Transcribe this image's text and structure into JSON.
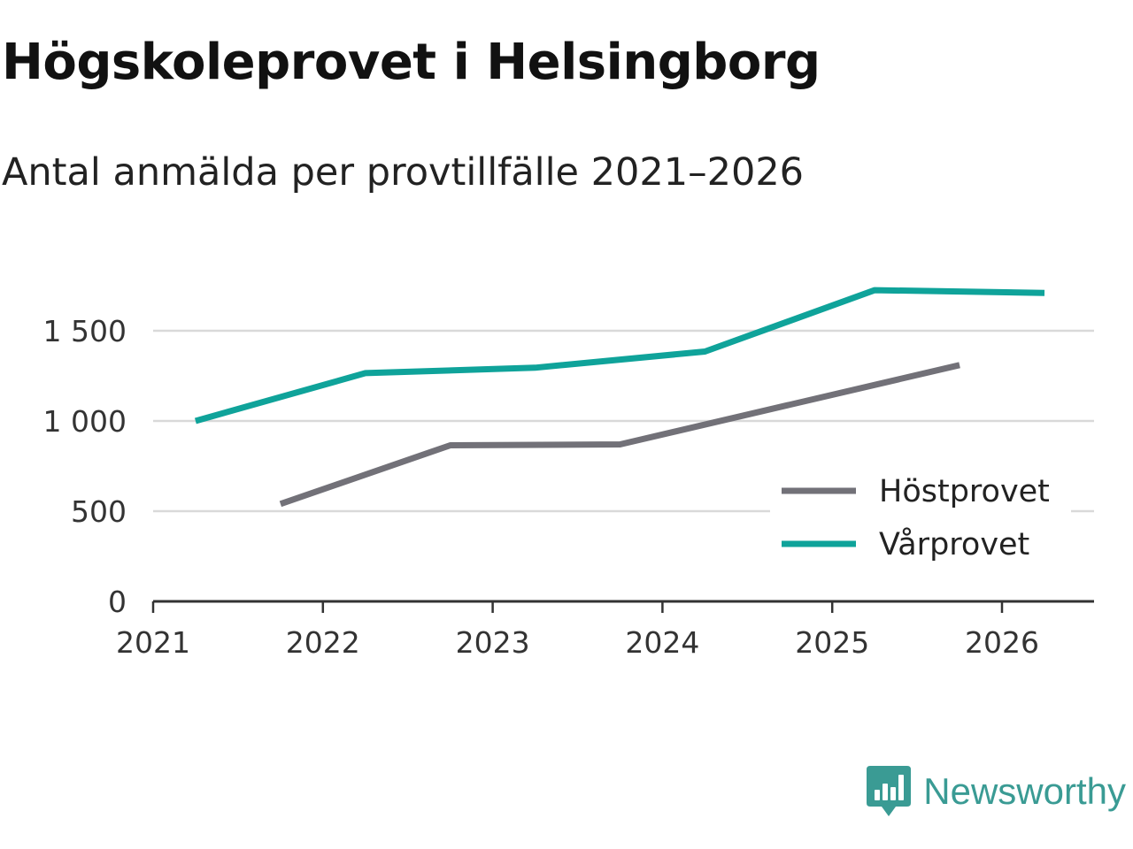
{
  "colors": {
    "brand": "#3a9b94",
    "hostprovet": "#727178",
    "varprovet": "#0fa39a",
    "grid": "#d9d9d9",
    "axis": "#333333"
  },
  "brand": {
    "name": "Newsworthy",
    "icon": "bar-chart-speech-bubble-icon"
  },
  "chart_data": {
    "type": "line",
    "title": "Högskoleprovet i Helsingborg",
    "subtitle": "Antal anmälda per provtillfälle 2021–2026",
    "xlabel": "",
    "ylabel": "",
    "xlim": [
      2021,
      2026.55
    ],
    "ylim": [
      0,
      1800
    ],
    "grid": true,
    "legend_position": "bottom-right",
    "x_ticks": [
      {
        "value": 2021,
        "label": "2021"
      },
      {
        "value": 2022,
        "label": "2022"
      },
      {
        "value": 2023,
        "label": "2023"
      },
      {
        "value": 2024,
        "label": "2024"
      },
      {
        "value": 2025,
        "label": "2025"
      },
      {
        "value": 2026,
        "label": "2026"
      }
    ],
    "y_ticks": [
      {
        "value": 0,
        "label": "0"
      },
      {
        "value": 500,
        "label": "500"
      },
      {
        "value": 1000,
        "label": "1 000"
      },
      {
        "value": 1500,
        "label": "1 500"
      }
    ],
    "series": [
      {
        "name": "Höstprovet",
        "color_key": "hostprovet",
        "points": [
          {
            "x": 2021.75,
            "y": 540
          },
          {
            "x": 2022.75,
            "y": 865
          },
          {
            "x": 2023.75,
            "y": 870
          },
          {
            "x": 2024.75,
            "y": 1090
          },
          {
            "x": 2025.75,
            "y": 1310
          }
        ]
      },
      {
        "name": "Vårprovet",
        "color_key": "varprovet",
        "points": [
          {
            "x": 2021.25,
            "y": 1000
          },
          {
            "x": 2022.25,
            "y": 1265
          },
          {
            "x": 2023.25,
            "y": 1295
          },
          {
            "x": 2024.25,
            "y": 1385
          },
          {
            "x": 2025.25,
            "y": 1725
          },
          {
            "x": 2026.25,
            "y": 1710
          }
        ]
      }
    ]
  }
}
